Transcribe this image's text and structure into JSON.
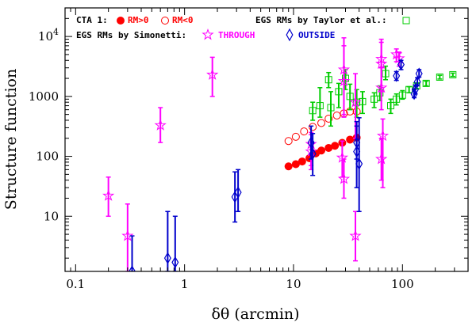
{
  "chart_data": {
    "type": "scatter",
    "xlabel": "δθ (arcmin)",
    "ylabel": "Structure function",
    "xscale": "log",
    "yscale": "log",
    "xlim": [
      0.08,
      400
    ],
    "ylim": [
      1.2,
      30000
    ],
    "x_ticks": [
      {
        "value": 0.1,
        "label": "0.1"
      },
      {
        "value": 1,
        "label": "1"
      },
      {
        "value": 10,
        "label": "10"
      },
      {
        "value": 100,
        "label": "100"
      }
    ],
    "y_ticks": [
      {
        "value": 10,
        "label": "10"
      },
      {
        "value": 100,
        "label": "100"
      },
      {
        "value": 1000,
        "label": "1000"
      },
      {
        "value": 10000,
        "label": "10",
        "sup": "4"
      }
    ],
    "legend": {
      "row1_prefix": "CTA 1:",
      "rm_pos": "RM>0",
      "rm_neg": "RM<0",
      "taylor": "EGS RMs by Taylor et al.:",
      "row2_prefix": "EGS RMs by Simonetti:",
      "through": "THROUGH",
      "outside": "OUTSIDE"
    },
    "colors": {
      "rm_pos": "#ff0000",
      "rm_neg": "#ff0000",
      "taylor": "#00cc00",
      "through": "#ff00ff",
      "outside": "#0000cc"
    },
    "series": [
      {
        "name": "RM>0",
        "marker": "filled-circle",
        "points": [
          [
            9,
            68
          ],
          [
            10.5,
            74
          ],
          [
            12,
            82
          ],
          [
            14,
            93
          ],
          [
            16,
            112
          ],
          [
            18,
            125
          ],
          [
            21,
            138
          ],
          [
            24,
            150
          ],
          [
            28,
            168
          ],
          [
            33,
            190
          ],
          [
            38,
            205
          ]
        ]
      },
      {
        "name": "RM<0",
        "marker": "open-circle",
        "points": [
          [
            9,
            180
          ],
          [
            10.5,
            212
          ],
          [
            12.5,
            260
          ],
          [
            15,
            310
          ],
          [
            18,
            360
          ],
          [
            21,
            425
          ],
          [
            25,
            480
          ],
          [
            29,
            520
          ],
          [
            33,
            560
          ],
          [
            38,
            560
          ]
        ]
      },
      {
        "name": "EGS RMs by Taylor et al.",
        "marker": "open-square",
        "points": [
          {
            "x": 15,
            "y": 580,
            "lo": 400,
            "hi": 800
          },
          {
            "x": 17.5,
            "y": 700,
            "lo": 450,
            "hi": 1400
          },
          {
            "x": 21,
            "y": 1900,
            "lo": 1400,
            "hi": 2500
          },
          {
            "x": 22,
            "y": 650,
            "lo": 320,
            "hi": 1200
          },
          {
            "x": 26,
            "y": 1200,
            "lo": 650,
            "hi": 1650
          },
          {
            "x": 30,
            "y": 2000,
            "lo": 1300,
            "hi": 2800
          },
          {
            "x": 33,
            "y": 1000,
            "lo": 600,
            "hi": 1600
          },
          {
            "x": 38,
            "y": 800,
            "lo": 450,
            "hi": 1300
          },
          {
            "x": 43,
            "y": 820,
            "lo": 520,
            "hi": 1200
          },
          {
            "x": 55,
            "y": 900,
            "lo": 650,
            "hi": 1150
          },
          {
            "x": 62,
            "y": 1150,
            "lo": 850,
            "hi": 1500
          },
          {
            "x": 70,
            "y": 2400,
            "lo": 1900,
            "hi": 3200
          },
          {
            "x": 78,
            "y": 700,
            "lo": 520,
            "hi": 900
          },
          {
            "x": 88,
            "y": 900,
            "lo": 720,
            "hi": 1100
          },
          {
            "x": 100,
            "y": 1050,
            "lo": 900,
            "hi": 1250
          },
          {
            "x": 115,
            "y": 1300,
            "lo": 1150,
            "hi": 1450
          },
          {
            "x": 135,
            "y": 1500,
            "lo": 1350,
            "hi": 1650
          },
          {
            "x": 165,
            "y": 1650,
            "lo": 1500,
            "hi": 1800
          },
          {
            "x": 220,
            "y": 2100,
            "lo": 1950,
            "hi": 2250
          },
          {
            "x": 290,
            "y": 2300,
            "lo": 2150,
            "hi": 2450
          }
        ]
      },
      {
        "name": "THROUGH",
        "marker": "open-star",
        "points": [
          {
            "x": 0.2,
            "y": 22,
            "lo": 10,
            "hi": 45
          },
          {
            "x": 0.3,
            "y": 4.7,
            "lo": 1.2,
            "hi": 16
          },
          {
            "x": 0.6,
            "y": 330,
            "lo": 170,
            "hi": 650
          },
          {
            "x": 1.8,
            "y": 2300,
            "lo": 1000,
            "hi": 4500
          },
          {
            "x": 14.5,
            "y": 160,
            "lo": 70,
            "hi": 250
          },
          {
            "x": 14.5,
            "y": 120,
            "lo": 60,
            "hi": 230
          },
          {
            "x": 28,
            "y": 95,
            "lo": 45,
            "hi": 180
          },
          {
            "x": 29,
            "y": 42,
            "lo": 20,
            "hi": 90
          },
          {
            "x": 29,
            "y": 2800,
            "lo": 450,
            "hi": 9500
          },
          {
            "x": 29,
            "y": 1800,
            "lo": 500,
            "hi": 7000
          },
          {
            "x": 37,
            "y": 4.7,
            "lo": 1.8,
            "hi": 12
          },
          {
            "x": 37,
            "y": 800,
            "lo": 200,
            "hi": 2400
          },
          {
            "x": 64,
            "y": 4200,
            "lo": 1400,
            "hi": 9000
          },
          {
            "x": 64,
            "y": 3500,
            "lo": 1200,
            "hi": 8000
          },
          {
            "x": 64,
            "y": 1400,
            "lo": 600,
            "hi": 3000
          },
          {
            "x": 64,
            "y": 90,
            "lo": 40,
            "hi": 200
          },
          {
            "x": 66,
            "y": 220,
            "lo": 30,
            "hi": 420
          },
          {
            "x": 88,
            "y": 5000,
            "lo": 3800,
            "hi": 6200
          },
          {
            "x": 93,
            "y": 4300,
            "lo": 3200,
            "hi": 5500
          }
        ]
      },
      {
        "name": "OUTSIDE",
        "marker": "open-diamond",
        "points": [
          {
            "x": 0.33,
            "y": 1.2,
            "lo": 1.2,
            "hi": 4.7
          },
          {
            "x": 0.7,
            "y": 2,
            "lo": 1.2,
            "hi": 12
          },
          {
            "x": 0.82,
            "y": 1.7,
            "lo": 1.2,
            "hi": 10
          },
          {
            "x": 2.9,
            "y": 21,
            "lo": 8,
            "hi": 55
          },
          {
            "x": 3.1,
            "y": 25,
            "lo": 12,
            "hi": 60
          },
          {
            "x": 14.5,
            "y": 170,
            "lo": 90,
            "hi": 320
          },
          {
            "x": 15,
            "y": 110,
            "lo": 48,
            "hi": 240
          },
          {
            "x": 38,
            "y": 170,
            "lo": 90,
            "hi": 320
          },
          {
            "x": 38,
            "y": 120,
            "lo": 30,
            "hi": 380
          },
          {
            "x": 40,
            "y": 75,
            "lo": 12,
            "hi": 440
          },
          {
            "x": 88,
            "y": 2200,
            "lo": 1850,
            "hi": 2600
          },
          {
            "x": 97,
            "y": 3400,
            "lo": 2800,
            "hi": 4000
          },
          {
            "x": 128,
            "y": 1100,
            "lo": 950,
            "hi": 1300
          },
          {
            "x": 131,
            "y": 1300,
            "lo": 1100,
            "hi": 1550
          },
          {
            "x": 137,
            "y": 1750,
            "lo": 1500,
            "hi": 2050
          },
          {
            "x": 142,
            "y": 2400,
            "lo": 2100,
            "hi": 2800
          }
        ]
      }
    ]
  }
}
